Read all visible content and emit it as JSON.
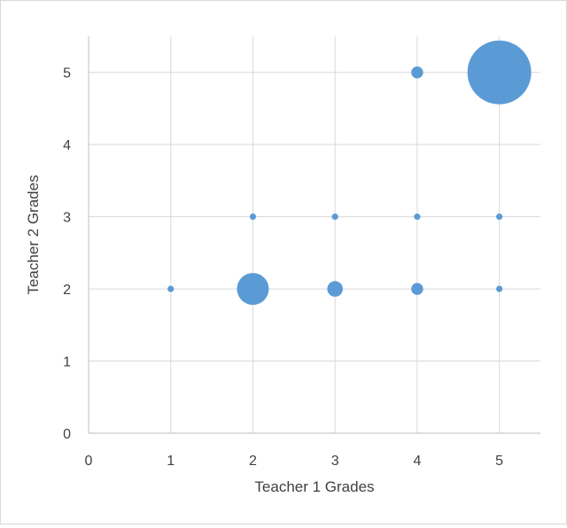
{
  "chart_data": {
    "type": "scatter",
    "subtype": "bubble",
    "title": "",
    "xlabel": "Teacher 1 Grades",
    "ylabel": "Teacher 2 Grades",
    "xlim": [
      0,
      5.5
    ],
    "ylim": [
      0,
      5.5
    ],
    "x_ticks": [
      0,
      1,
      2,
      3,
      4,
      5
    ],
    "y_ticks": [
      0,
      1,
      2,
      3,
      4,
      5
    ],
    "grid": true,
    "legend": "none",
    "bubble_color": "#5b9bd5",
    "grid_color": "#d9d9d9",
    "axis_color": "#bfbfbf",
    "points": [
      {
        "x": 1,
        "y": 2,
        "size": 1
      },
      {
        "x": 2,
        "y": 2,
        "size": 25
      },
      {
        "x": 3,
        "y": 2,
        "size": 6
      },
      {
        "x": 4,
        "y": 2,
        "size": 3.5
      },
      {
        "x": 5,
        "y": 2,
        "size": 1
      },
      {
        "x": 2,
        "y": 3,
        "size": 1
      },
      {
        "x": 3,
        "y": 3,
        "size": 1
      },
      {
        "x": 4,
        "y": 3,
        "size": 1
      },
      {
        "x": 5,
        "y": 3,
        "size": 1
      },
      {
        "x": 4,
        "y": 5,
        "size": 3.5
      },
      {
        "x": 5,
        "y": 5,
        "size": 100
      }
    ]
  }
}
